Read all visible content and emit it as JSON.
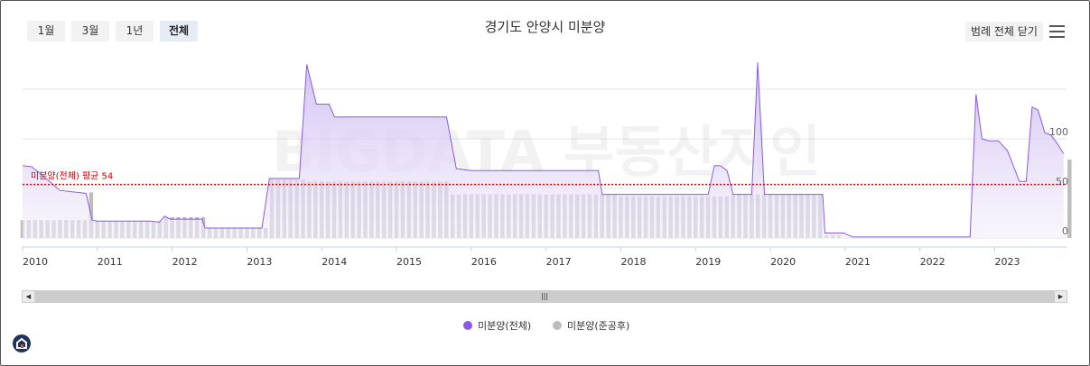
{
  "toolbar": {
    "ranges": [
      "1월",
      "3월",
      "1년",
      "전체"
    ],
    "active_range": "전체",
    "legend_toggle_label": "범례 전체 닫기"
  },
  "chart_data": {
    "type": "area",
    "title": "경기도 안양시 미분양",
    "xlabel": "",
    "ylabel": "",
    "x_tick_labels": [
      "2010",
      "2011",
      "2012",
      "2013",
      "2014",
      "2015",
      "2016",
      "2017",
      "2018",
      "2019",
      "2020",
      "2021",
      "2022",
      "2023"
    ],
    "y_tick_labels": [
      "0",
      "50",
      "100"
    ],
    "ylim": [
      0,
      150
    ],
    "xlim": [
      2010.0,
      2023.96
    ],
    "grid": true,
    "legend_position": "bottom-center",
    "average_line": {
      "label": "미분양(전체) 평균 54",
      "value": 54,
      "color": "#dd0000"
    },
    "watermark_text": "BIGDATA 부동산지인",
    "series": [
      {
        "name": "미분양(전체)",
        "type": "area",
        "color": "#8a5ae6",
        "points": [
          [
            2010.0,
            73
          ],
          [
            2010.12,
            72
          ],
          [
            2010.22,
            66
          ],
          [
            2010.5,
            48
          ],
          [
            2010.85,
            45
          ],
          [
            2010.93,
            18
          ],
          [
            2011.0,
            17
          ],
          [
            2011.4,
            17
          ],
          [
            2011.7,
            17
          ],
          [
            2011.83,
            16
          ],
          [
            2011.9,
            22
          ],
          [
            2011.97,
            19
          ],
          [
            2012.1,
            19
          ],
          [
            2012.4,
            19
          ],
          [
            2012.44,
            10
          ],
          [
            2012.8,
            10
          ],
          [
            2013.2,
            10
          ],
          [
            2013.3,
            60
          ],
          [
            2013.7,
            60
          ],
          [
            2013.8,
            175
          ],
          [
            2013.93,
            135
          ],
          [
            2014.1,
            135
          ],
          [
            2014.17,
            122
          ],
          [
            2014.6,
            122
          ],
          [
            2015.0,
            122
          ],
          [
            2015.67,
            122
          ],
          [
            2015.8,
            70
          ],
          [
            2016.0,
            68
          ],
          [
            2016.6,
            68
          ],
          [
            2017.0,
            68
          ],
          [
            2017.7,
            68
          ],
          [
            2017.75,
            44
          ],
          [
            2018.0,
            44
          ],
          [
            2018.5,
            44
          ],
          [
            2019.0,
            44
          ],
          [
            2019.17,
            44
          ],
          [
            2019.25,
            73
          ],
          [
            2019.33,
            73
          ],
          [
            2019.42,
            68
          ],
          [
            2019.5,
            44
          ],
          [
            2019.75,
            44
          ],
          [
            2019.83,
            177
          ],
          [
            2019.92,
            44
          ],
          [
            2020.0,
            44
          ],
          [
            2020.5,
            44
          ],
          [
            2020.7,
            44
          ],
          [
            2020.73,
            5
          ],
          [
            2020.98,
            5
          ],
          [
            2021.1,
            1
          ],
          [
            2021.5,
            1
          ],
          [
            2022.0,
            1
          ],
          [
            2022.5,
            1
          ],
          [
            2022.67,
            1
          ],
          [
            2022.75,
            145
          ],
          [
            2022.83,
            100
          ],
          [
            2022.92,
            98
          ],
          [
            2023.05,
            98
          ],
          [
            2023.17,
            88
          ],
          [
            2023.33,
            57
          ],
          [
            2023.42,
            57
          ],
          [
            2023.5,
            132
          ],
          [
            2023.58,
            129
          ],
          [
            2023.67,
            106
          ],
          [
            2023.75,
            104
          ],
          [
            2023.83,
            96
          ],
          [
            2023.92,
            85
          ]
        ]
      },
      {
        "name": "미분양(준공후)",
        "type": "bar",
        "color": "#bdbdbd",
        "points": [
          [
            2010.0,
            18
          ],
          [
            2010.5,
            18
          ],
          [
            2010.85,
            18
          ],
          [
            2010.9,
            46
          ],
          [
            2011.0,
            17
          ],
          [
            2011.5,
            17
          ],
          [
            2011.75,
            17
          ],
          [
            2011.9,
            21
          ],
          [
            2012.0,
            21
          ],
          [
            2012.4,
            21
          ],
          [
            2012.44,
            10
          ],
          [
            2013.0,
            10
          ],
          [
            2013.28,
            10
          ],
          [
            2013.32,
            59
          ],
          [
            2013.75,
            59
          ],
          [
            2013.8,
            57
          ],
          [
            2014.0,
            57
          ],
          [
            2015.0,
            57
          ],
          [
            2015.7,
            57
          ],
          [
            2015.75,
            44
          ],
          [
            2016.0,
            44
          ],
          [
            2017.0,
            44
          ],
          [
            2017.9,
            44
          ],
          [
            2017.95,
            42
          ],
          [
            2018.0,
            42
          ],
          [
            2019.0,
            42
          ],
          [
            2019.5,
            44
          ],
          [
            2019.83,
            44
          ],
          [
            2020.0,
            44
          ],
          [
            2020.7,
            44
          ],
          [
            2020.73,
            3
          ],
          [
            2020.98,
            3
          ],
          [
            2021.0,
            0
          ],
          [
            2022.5,
            0
          ],
          [
            2023.92,
            79
          ]
        ]
      }
    ]
  }
}
